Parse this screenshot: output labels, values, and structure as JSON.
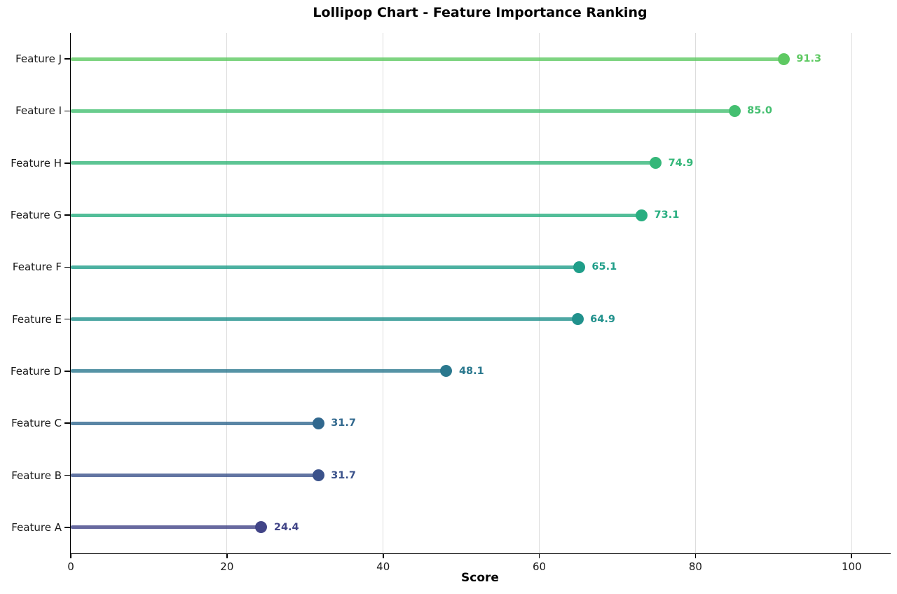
{
  "figure": {
    "background": "#ffffff"
  },
  "chart_data": {
    "type": "bar",
    "variant": "lollipop",
    "orientation": "horizontal",
    "title": "Lollipop Chart - Feature Importance Ranking",
    "xlabel": "Score",
    "ylabel": "",
    "categories": [
      "Feature J",
      "Feature I",
      "Feature H",
      "Feature G",
      "Feature F",
      "Feature E",
      "Feature D",
      "Feature C",
      "Feature B",
      "Feature A"
    ],
    "values": [
      91.3,
      85.0,
      74.9,
      73.1,
      65.1,
      64.9,
      48.1,
      31.7,
      31.7,
      24.4
    ],
    "value_labels": [
      "91.3",
      "85.0",
      "74.9",
      "73.1",
      "65.1",
      "64.9",
      "48.1",
      "31.7",
      "31.7",
      "24.4"
    ],
    "point_colors": [
      "#5ec962",
      "#44bf70",
      "#35b779",
      "#28ae80",
      "#1f9e89",
      "#21918c",
      "#2a788e",
      "#31688e",
      "#3b528b",
      "#414487"
    ],
    "xlim": [
      0,
      105
    ],
    "xticks": [
      0,
      20,
      40,
      60,
      80,
      100
    ],
    "xtick_labels": [
      "0",
      "20",
      "40",
      "60",
      "80",
      "100"
    ],
    "grid": {
      "vertical": true,
      "color": "#dddddd"
    },
    "legend": "none",
    "styles": {
      "stem_opacity": 0.8,
      "axis_color": "#000000",
      "tick_text_color": "#1a1a1a",
      "colormap": "viridis"
    }
  }
}
